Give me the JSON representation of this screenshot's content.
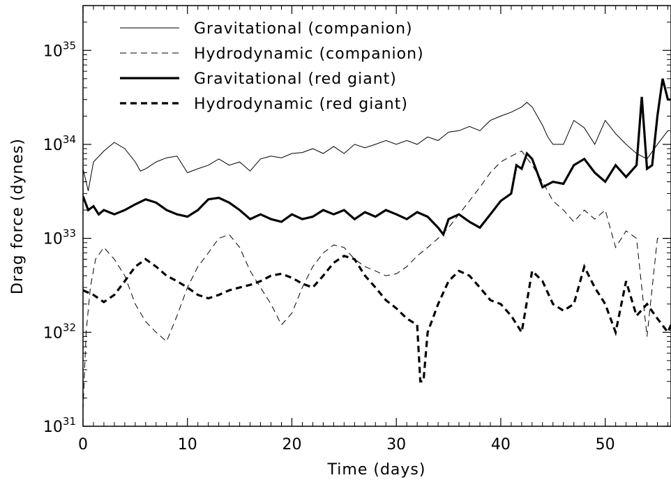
{
  "chart_data": {
    "type": "line",
    "title": "",
    "xlabel": "Time (days)",
    "ylabel": "Drag force (dynes)",
    "xlim": [
      0,
      56.3
    ],
    "ylim": [
      1e+31,
      3e+35
    ],
    "yscale": "log",
    "x_ticks": [
      0,
      10,
      20,
      30,
      40,
      50
    ],
    "y_ticks": [
      {
        "value": 1e+31,
        "base": "10",
        "exp": "31"
      },
      {
        "value": 1e+32,
        "base": "10",
        "exp": "32"
      },
      {
        "value": 1e+33,
        "base": "10",
        "exp": "33"
      },
      {
        "value": 1e+34,
        "base": "10",
        "exp": "34"
      },
      {
        "value": 1e+35,
        "base": "10",
        "exp": "35"
      }
    ],
    "legend_position": "top-left",
    "grid": false,
    "series": [
      {
        "name": "Gravitational (companion)",
        "style": "thin-solid",
        "x": [
          0,
          0.5,
          1,
          2,
          3,
          4,
          5,
          5.5,
          6,
          7,
          8,
          9,
          10,
          11,
          12,
          13,
          14,
          15,
          16,
          17,
          18,
          19,
          20,
          21,
          22,
          23,
          24,
          25,
          26,
          27,
          28,
          29,
          30,
          31,
          32,
          33,
          34,
          35,
          36,
          37,
          38,
          39,
          40,
          41,
          42,
          42.5,
          43,
          44,
          44.5,
          45,
          46,
          47,
          48,
          49,
          50,
          51,
          52,
          53,
          54,
          55,
          56,
          56.3
        ],
        "y": [
          5.5e+33,
          3.2e+33,
          6.5e+33,
          8.5e+33,
          1.05e+34,
          9e+33,
          6.5e+33,
          5.2e+33,
          5.5e+33,
          6.5e+33,
          7.2e+33,
          7.5e+33,
          5e+33,
          5.5e+33,
          6e+33,
          7e+33,
          6e+33,
          6.5e+33,
          5.2e+33,
          7e+33,
          7.5e+33,
          7.2e+33,
          8e+33,
          8.2e+33,
          9e+33,
          8e+33,
          9.5e+33,
          8e+33,
          1e+34,
          9.2e+33,
          1e+34,
          1.1e+34,
          1e+34,
          1.1e+34,
          1e+34,
          1.2e+34,
          1.1e+34,
          1.35e+34,
          1.4e+34,
          1.55e+34,
          1.4e+34,
          1.8e+34,
          2e+34,
          2.2e+34,
          2.5e+34,
          2.8e+34,
          2.5e+34,
          1.6e+34,
          1.2e+34,
          1e+34,
          1e+34,
          1.8e+34,
          1.5e+34,
          1e+34,
          1.8e+34,
          1.3e+34,
          1e+34,
          8e+33,
          7e+33,
          1e+34,
          1.4e+34,
          1.4e+34
        ]
      },
      {
        "name": "Hydrodynamic (companion)",
        "style": "thin-dashed",
        "x": [
          0,
          0.3,
          0.7,
          1.2,
          2,
          3,
          4,
          5,
          6,
          7,
          8,
          9,
          10,
          11,
          12,
          13,
          14,
          15,
          16,
          17,
          18,
          19,
          20,
          21,
          22,
          23,
          24,
          25,
          26,
          27,
          28,
          29,
          30,
          31,
          32,
          33,
          34,
          35,
          36,
          37,
          38,
          39,
          40,
          41,
          42,
          43,
          44,
          45,
          46,
          47,
          48,
          49,
          50,
          51,
          52,
          53,
          54,
          55,
          56,
          56.3
        ],
        "y": [
          1.5e+31,
          1e+32,
          3e+32,
          6e+32,
          8e+32,
          6e+32,
          4e+32,
          2e+32,
          1.3e+32,
          1e+32,
          8e+31,
          1.5e+32,
          3e+32,
          5e+32,
          7e+32,
          1e+33,
          1.1e+33,
          8e+32,
          4.5e+32,
          3e+32,
          2e+32,
          1.2e+32,
          1.6e+32,
          3e+32,
          5e+32,
          7e+32,
          8.5e+32,
          8e+32,
          6e+32,
          5e+32,
          4.5e+32,
          4e+32,
          4.2e+32,
          5e+32,
          6.5e+32,
          8e+32,
          1e+33,
          1.3e+33,
          1.8e+33,
          2.5e+33,
          3.5e+33,
          5e+33,
          6.5e+33,
          7.5e+33,
          8.5e+33,
          6e+33,
          4e+33,
          2.5e+33,
          2e+33,
          1.5e+33,
          2e+33,
          1.6e+33,
          2e+33,
          8e+32,
          1.2e+33,
          1e+33,
          9e+31,
          1e+33,
          1e+33,
          1e+33
        ]
      },
      {
        "name": "Gravitational (red giant)",
        "style": "thick-solid",
        "x": [
          0,
          0.5,
          1,
          1.5,
          2,
          3,
          4,
          5,
          6,
          7,
          8,
          9,
          10,
          11,
          12,
          13,
          14,
          15,
          16,
          17,
          18,
          19,
          20,
          21,
          22,
          23,
          24,
          25,
          26,
          27,
          28,
          29,
          30,
          31,
          32,
          33,
          34,
          34.5,
          35,
          36,
          37,
          38,
          39,
          40,
          41,
          41.5,
          42,
          42.5,
          43,
          43.5,
          44,
          45,
          46,
          47,
          48,
          49,
          50,
          51,
          52,
          53,
          53.5,
          54,
          54.5,
          55,
          55.5,
          56,
          56.3
        ],
        "y": [
          2.8e+33,
          2e+33,
          2.2e+33,
          1.8e+33,
          2e+33,
          1.8e+33,
          2e+33,
          2.3e+33,
          2.6e+33,
          2.4e+33,
          2e+33,
          1.8e+33,
          1.7e+33,
          2e+33,
          2.6e+33,
          2.7e+33,
          2.4e+33,
          2e+33,
          1.6e+33,
          1.8e+33,
          1.6e+33,
          1.5e+33,
          1.8e+33,
          1.6e+33,
          1.7e+33,
          2e+33,
          1.8e+33,
          2e+33,
          1.6e+33,
          1.9e+33,
          1.7e+33,
          2e+33,
          1.8e+33,
          1.6e+33,
          1.9e+33,
          1.7e+33,
          1.3e+33,
          1.1e+33,
          1.6e+33,
          1.8e+33,
          1.5e+33,
          1.3e+33,
          1.8e+33,
          2.5e+33,
          3e+33,
          6e+33,
          5.5e+33,
          8e+33,
          7e+33,
          5e+33,
          3.5e+33,
          4e+33,
          3.8e+33,
          6e+33,
          7e+33,
          5e+33,
          4e+33,
          6e+33,
          4.5e+33,
          6e+33,
          3.2e+34,
          5.5e+33,
          6e+33,
          2e+34,
          5e+34,
          3e+34,
          3e+34
        ]
      },
      {
        "name": "Hydrodynamic (red giant)",
        "style": "thick-dashed",
        "x": [
          0,
          1,
          2,
          3,
          4,
          5,
          6,
          7,
          8,
          9,
          10,
          11,
          12,
          13,
          14,
          15,
          16,
          17,
          18,
          19,
          20,
          21,
          22,
          23,
          24,
          25,
          26,
          27,
          28,
          29,
          30,
          31,
          32,
          32.3,
          32.6,
          33,
          34,
          35,
          36,
          37,
          38,
          39,
          40,
          41,
          42,
          43,
          44,
          45,
          46,
          47,
          48,
          49,
          50,
          51,
          52,
          53,
          54,
          55,
          56,
          56.3
        ],
        "y": [
          2.8e+32,
          2.5e+32,
          2.1e+32,
          2.5e+32,
          3.5e+32,
          5e+32,
          6e+32,
          5e+32,
          4e+32,
          3.5e+32,
          3e+32,
          2.5e+32,
          2.3e+32,
          2.5e+32,
          2.8e+32,
          3e+32,
          3.2e+32,
          3.5e+32,
          4e+32,
          4.2e+32,
          3.8e+32,
          3.3e+32,
          3e+32,
          4e+32,
          5.5e+32,
          6.5e+32,
          6e+32,
          4e+32,
          3e+32,
          2.2e+32,
          1.8e+32,
          1.4e+32,
          1.2e+32,
          3e+31,
          3e+31,
          1e+32,
          2e+32,
          3.5e+32,
          4.5e+32,
          4e+32,
          3e+32,
          2.2e+32,
          2e+32,
          1.5e+32,
          1e+32,
          4.5e+32,
          3.5e+32,
          2e+32,
          1.7e+32,
          2e+32,
          5e+32,
          3e+32,
          2e+32,
          1e+32,
          3.5e+32,
          1.5e+32,
          2e+32,
          1.4e+32,
          1e+32,
          1.2e+32
        ]
      }
    ]
  }
}
